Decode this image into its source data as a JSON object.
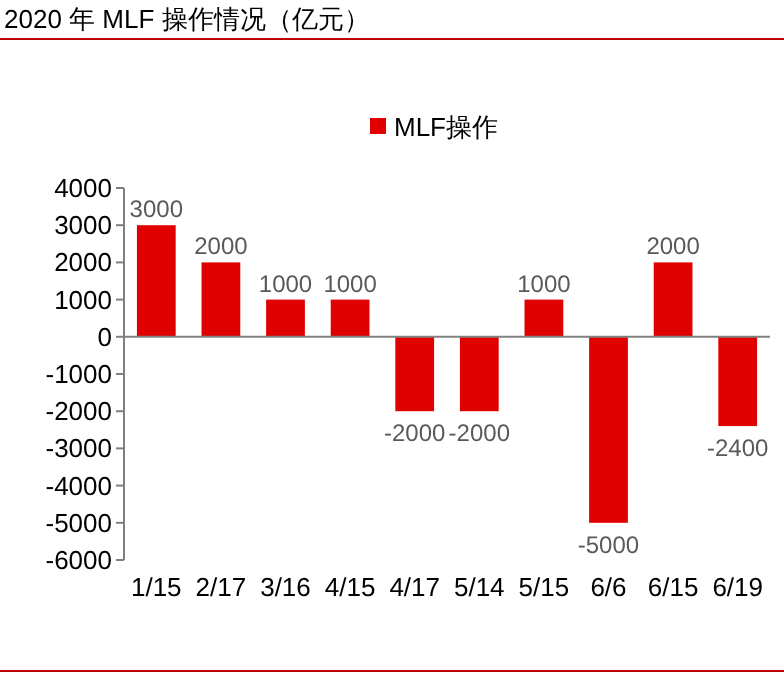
{
  "chart_data": {
    "type": "bar",
    "title": "2020 年 MLF 操作情况（亿元）",
    "categories": [
      "1/15",
      "2/17",
      "3/16",
      "4/15",
      "4/17",
      "5/14",
      "5/15",
      "6/6",
      "6/15",
      "6/19"
    ],
    "series": [
      {
        "name": "MLF操作",
        "color": "#e00000",
        "values": [
          3000,
          2000,
          1000,
          1000,
          -2000,
          -2000,
          1000,
          -5000,
          2000,
          -2400
        ]
      }
    ],
    "ylim": [
      -6000,
      4000
    ],
    "yticks": [
      -6000,
      -5000,
      -4000,
      -3000,
      -2000,
      -1000,
      0,
      1000,
      2000,
      3000,
      4000
    ],
    "data_labels": true,
    "legend": "top"
  }
}
